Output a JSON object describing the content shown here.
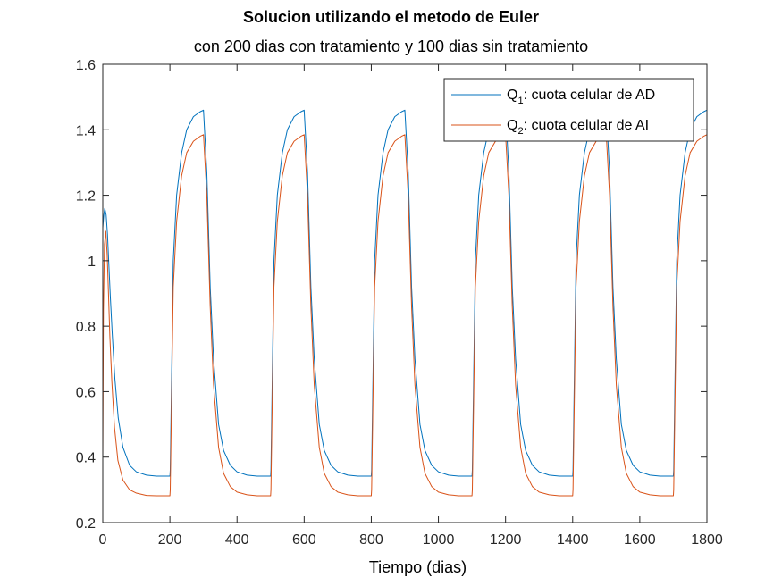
{
  "chart_data": {
    "type": "line",
    "title": "Solucion utilizando el metodo de Euler",
    "subtitle": "con 200 dias con tratamiento y 100 dias sin tratamiento",
    "xlabel": "Tiempo (dias)",
    "ylabel": "",
    "xlim": [
      0,
      1800
    ],
    "ylim": [
      0.2,
      1.6
    ],
    "xticks": [
      "0",
      "200",
      "400",
      "600",
      "800",
      "1000",
      "1200",
      "1400",
      "1600",
      "1800"
    ],
    "yticks": [
      "0.2",
      "0.4",
      "0.6",
      "0.8",
      "1",
      "1.2",
      "1.4",
      "1.6"
    ],
    "grid": false,
    "legend_position": "top-right",
    "series": [
      {
        "name_main": "Q",
        "name_sub": "1",
        "name_rest": ": cuota celular de AD",
        "color": "#0072BD",
        "x": [
          0,
          3,
          6,
          10,
          14,
          18,
          22,
          28,
          36,
          46,
          60,
          80,
          100,
          130,
          160,
          200,
          201,
          210,
          220,
          235,
          250,
          270,
          290,
          300,
          310,
          320,
          330,
          345,
          360,
          380,
          400,
          430,
          460,
          500,
          501,
          510,
          520,
          535,
          550,
          570,
          590,
          600,
          610,
          620,
          630,
          645,
          660,
          680,
          700,
          730,
          760,
          800,
          801,
          810,
          820,
          835,
          850,
          870,
          890,
          900,
          910,
          920,
          930,
          945,
          960,
          980,
          1000,
          1030,
          1060,
          1100,
          1101,
          1110,
          1120,
          1135,
          1150,
          1170,
          1190,
          1200,
          1210,
          1220,
          1230,
          1245,
          1260,
          1280,
          1300,
          1330,
          1360,
          1400,
          1401,
          1410,
          1420,
          1435,
          1450,
          1470,
          1490,
          1500,
          1510,
          1520,
          1530,
          1545,
          1560,
          1580,
          1600,
          1630,
          1660,
          1700,
          1701,
          1710,
          1720,
          1735,
          1750,
          1770,
          1790,
          1800
        ],
        "y": [
          1.1,
          1.14,
          1.16,
          1.14,
          1.08,
          0.99,
          0.9,
          0.78,
          0.64,
          0.52,
          0.43,
          0.375,
          0.355,
          0.345,
          0.342,
          0.342,
          0.36,
          1.0,
          1.2,
          1.33,
          1.4,
          1.44,
          1.455,
          1.46,
          1.27,
          0.92,
          0.7,
          0.5,
          0.42,
          0.375,
          0.355,
          0.345,
          0.342,
          0.342,
          0.36,
          1.0,
          1.2,
          1.33,
          1.4,
          1.44,
          1.455,
          1.46,
          1.27,
          0.92,
          0.7,
          0.5,
          0.42,
          0.375,
          0.355,
          0.345,
          0.342,
          0.342,
          0.36,
          1.0,
          1.2,
          1.33,
          1.4,
          1.44,
          1.455,
          1.46,
          1.27,
          0.92,
          0.7,
          0.5,
          0.42,
          0.375,
          0.355,
          0.345,
          0.342,
          0.342,
          0.36,
          1.0,
          1.2,
          1.33,
          1.4,
          1.44,
          1.455,
          1.46,
          1.27,
          0.92,
          0.7,
          0.5,
          0.42,
          0.375,
          0.355,
          0.345,
          0.342,
          0.342,
          0.36,
          1.0,
          1.2,
          1.33,
          1.4,
          1.44,
          1.455,
          1.46,
          1.27,
          0.92,
          0.7,
          0.5,
          0.42,
          0.375,
          0.355,
          0.345,
          0.342,
          0.342,
          0.36,
          1.0,
          1.2,
          1.33,
          1.4,
          1.44,
          1.455,
          1.46
        ]
      },
      {
        "name_main": "Q",
        "name_sub": "2",
        "name_rest": ": cuota celular de AI",
        "color": "#D95319",
        "x": [
          0,
          2,
          5,
          9,
          13,
          17,
          21,
          27,
          35,
          45,
          60,
          80,
          100,
          130,
          160,
          200,
          201,
          210,
          220,
          235,
          250,
          270,
          290,
          300,
          310,
          320,
          330,
          345,
          360,
          380,
          400,
          430,
          460,
          500,
          501,
          510,
          520,
          535,
          550,
          570,
          590,
          600,
          610,
          620,
          630,
          645,
          660,
          680,
          700,
          730,
          760,
          800,
          801,
          810,
          820,
          835,
          850,
          870,
          890,
          900,
          910,
          920,
          930,
          945,
          960,
          980,
          1000,
          1030,
          1060,
          1100,
          1101,
          1110,
          1120,
          1135,
          1150,
          1170,
          1190,
          1200,
          1210,
          1220,
          1230,
          1245,
          1260,
          1280,
          1300,
          1330,
          1360,
          1400,
          1401,
          1410,
          1420,
          1435,
          1450,
          1470,
          1490,
          1500,
          1510,
          1520,
          1530,
          1545,
          1560,
          1580,
          1600,
          1630,
          1660,
          1700,
          1701,
          1710,
          1720,
          1735,
          1750,
          1770,
          1790,
          1800
        ],
        "y": [
          0.4,
          0.85,
          1.05,
          1.09,
          1.02,
          0.9,
          0.77,
          0.63,
          0.49,
          0.39,
          0.33,
          0.3,
          0.29,
          0.283,
          0.282,
          0.282,
          0.3,
          0.92,
          1.12,
          1.26,
          1.33,
          1.365,
          1.38,
          1.385,
          1.2,
          0.86,
          0.62,
          0.43,
          0.35,
          0.31,
          0.293,
          0.285,
          0.282,
          0.282,
          0.3,
          0.92,
          1.12,
          1.26,
          1.33,
          1.365,
          1.38,
          1.385,
          1.2,
          0.86,
          0.62,
          0.43,
          0.35,
          0.31,
          0.293,
          0.285,
          0.282,
          0.282,
          0.3,
          0.92,
          1.12,
          1.26,
          1.33,
          1.365,
          1.38,
          1.385,
          1.2,
          0.86,
          0.62,
          0.43,
          0.35,
          0.31,
          0.293,
          0.285,
          0.282,
          0.282,
          0.3,
          0.92,
          1.12,
          1.26,
          1.33,
          1.365,
          1.38,
          1.385,
          1.2,
          0.86,
          0.62,
          0.43,
          0.35,
          0.31,
          0.293,
          0.285,
          0.282,
          0.282,
          0.3,
          0.92,
          1.12,
          1.26,
          1.33,
          1.365,
          1.38,
          1.385,
          1.2,
          0.86,
          0.62,
          0.43,
          0.35,
          0.31,
          0.293,
          0.285,
          0.282,
          0.282,
          0.3,
          0.92,
          1.12,
          1.26,
          1.33,
          1.365,
          1.38,
          1.385
        ]
      }
    ]
  }
}
